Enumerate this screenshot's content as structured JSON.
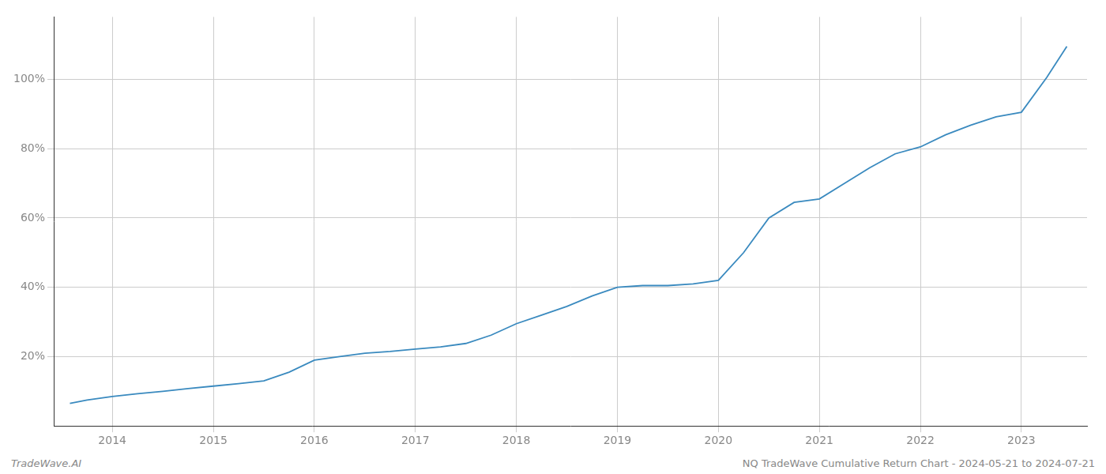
{
  "chart_data": {
    "type": "line",
    "annotations": [
      "TradeWave.AI",
      "NQ TradeWave Cumulative Return Chart - 2024-05-21 to 2024-07-21"
    ],
    "color": "#3a8abf",
    "grid": true,
    "x": [
      2013.58,
      2013.75,
      2014.0,
      2014.25,
      2014.5,
      2014.75,
      2015.0,
      2015.25,
      2015.5,
      2015.75,
      2016.0,
      2016.25,
      2016.5,
      2016.75,
      2017.0,
      2017.25,
      2017.5,
      2017.75,
      2018.0,
      2018.25,
      2018.5,
      2018.75,
      2019.0,
      2019.25,
      2019.5,
      2019.75,
      2020.0,
      2020.25,
      2020.5,
      2020.75,
      2021.0,
      2021.25,
      2021.5,
      2021.75,
      2022.0,
      2022.25,
      2022.5,
      2022.75,
      2023.0,
      2023.25,
      2023.45
    ],
    "values": [
      0.065,
      0.075,
      0.085,
      0.093,
      0.1,
      0.108,
      0.115,
      0.122,
      0.13,
      0.155,
      0.19,
      0.2,
      0.21,
      0.215,
      0.222,
      0.228,
      0.238,
      0.262,
      0.295,
      0.32,
      0.345,
      0.375,
      0.4,
      0.405,
      0.405,
      0.41,
      0.42,
      0.5,
      0.6,
      0.645,
      0.655,
      0.7,
      0.745,
      0.785,
      0.805,
      0.84,
      0.868,
      0.892,
      0.905,
      1.005,
      1.095
    ],
    "xlim": [
      2013.42,
      2023.65
    ],
    "xticks": [
      2014,
      2015,
      2016,
      2017,
      2018,
      2019,
      2020,
      2021,
      2022,
      2023
    ],
    "ylim": [
      0.0,
      1.18
    ],
    "yticks": [
      {
        "value": 0.2,
        "label": "20%"
      },
      {
        "value": 0.4,
        "label": "40%"
      },
      {
        "value": 0.6,
        "label": "60%"
      },
      {
        "value": 0.8,
        "label": "80%"
      },
      {
        "value": 1.0,
        "label": "100%"
      }
    ]
  }
}
